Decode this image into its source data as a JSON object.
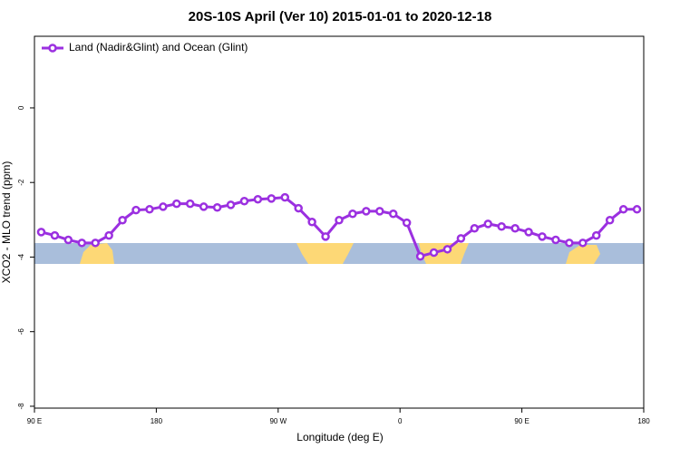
{
  "chart_data": {
    "type": "line",
    "title": "20S-10S April (Ver 10)   2015-01-01 to 2020-12-18",
    "x_label": "Longitude (deg E)",
    "y_label": "XCO2 - MLO trend (ppm)",
    "legend": "top-left",
    "xlim": [
      90,
      540
    ],
    "xticks": [
      {
        "value": 90,
        "label": "90 E"
      },
      {
        "value": 180,
        "label": "180"
      },
      {
        "value": 270,
        "label": "90 W"
      },
      {
        "value": 360,
        "label": "0"
      },
      {
        "value": 450,
        "label": "90 E"
      },
      {
        "value": 540,
        "label": "180"
      }
    ],
    "ylim": [
      -8.05,
      1.92
    ],
    "yticks": [
      0,
      -2,
      -4,
      -6,
      -8
    ],
    "x": [
      95,
      105,
      115,
      125,
      135,
      145,
      155,
      165,
      175,
      185,
      195,
      205,
      215,
      225,
      235,
      245,
      255,
      265,
      275,
      285,
      295,
      305,
      315,
      325,
      335,
      345,
      355,
      365,
      375,
      385,
      395,
      405,
      415,
      425,
      435,
      445,
      455,
      465,
      475,
      485,
      495,
      505,
      515,
      525,
      535
    ],
    "series": [
      {
        "name": "Land (Nadir&Glint) and Ocean (Glint)",
        "color": "#9b30e0",
        "values": [
          -3.33,
          -3.42,
          -3.54,
          -3.62,
          -3.62,
          -3.42,
          -3.01,
          -2.74,
          -2.72,
          -2.65,
          -2.57,
          -2.57,
          -2.65,
          -2.67,
          -2.6,
          -2.5,
          -2.45,
          -2.43,
          -2.4,
          -2.69,
          -3.06,
          -3.45,
          -3.01,
          -2.84,
          -2.77,
          -2.77,
          -2.84,
          -3.08,
          -3.98,
          -3.88,
          -3.79,
          -3.5,
          -3.23,
          -3.11,
          -3.18,
          -3.23,
          -3.33,
          -3.45,
          -3.54,
          -3.62,
          -3.62,
          -3.42,
          -3.01,
          -2.72,
          -2.72
        ]
      }
    ]
  }
}
